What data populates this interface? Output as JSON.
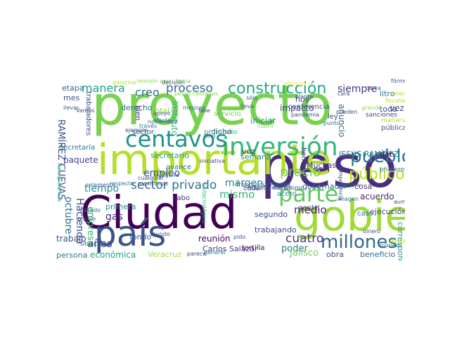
{
  "words": [
    {
      "text": "proyecto",
      "color": "#7ad151"
    },
    {
      "text": "peso",
      "color": "#472d7b"
    },
    {
      "text": "Ciudad",
      "color": "#440154"
    },
    {
      "text": "gobierno",
      "color": "#a0da39"
    },
    {
      "text": "país",
      "color": "#3b528b"
    },
    {
      "text": "importante",
      "color": "#b5de2b"
    },
    {
      "text": "parte",
      "color": "#5ec962"
    },
    {
      "text": "inversión",
      "color": "#35b779"
    },
    {
      "text": "centavos",
      "color": "#21918c"
    },
    {
      "text": "pueblo",
      "color": "#2a788e"
    },
    {
      "text": "construcción",
      "color": "#22a884"
    },
    {
      "text": "millones",
      "color": "#31688e"
    },
    {
      "text": "sector privado",
      "color": "#2c728e"
    },
    {
      "text": "público",
      "color": "#bddf26"
    },
    {
      "text": "precio",
      "color": "#7ad151"
    },
    {
      "text": "años",
      "color": "#3e4989"
    },
    {
      "text": "proceso",
      "color": "#31688e"
    },
    {
      "text": "manera",
      "color": "#1fa187"
    },
    {
      "text": "cuatro",
      "color": "#453781"
    },
    {
      "text": "siempre",
      "color": "#443983"
    },
    {
      "text": "creo",
      "color": "#2c728e"
    },
    {
      "text": "margen",
      "color": "#26828e"
    },
    {
      "text": "mismo",
      "color": "#35b779"
    },
    {
      "text": "poder",
      "color": "#2a788e"
    },
    {
      "text": "empleo",
      "color": "#3b528b"
    },
    {
      "text": "tiempo",
      "color": "#21918c"
    },
    {
      "text": "medio",
      "color": "#481f70"
    },
    {
      "text": "económica",
      "color": "#1fa187"
    },
    {
      "text": "fondo",
      "color": "#365c8d"
    },
    {
      "text": "Carlos Salazar",
      "color": "#404387"
    },
    {
      "text": "octubre",
      "color": "#2c728e"
    },
    {
      "text": "Hacienda",
      "color": "#3e4989"
    },
    {
      "text": "empresa",
      "color": "#35b779"
    },
    {
      "text": "RAMÍREZ CUEVAS",
      "color": "#3b528b"
    },
    {
      "text": "JESÚS RAMÍREZ",
      "color": "#2a788e"
    },
    {
      "text": "secretario",
      "color": "#1f9e89"
    },
    {
      "text": "paquete",
      "color": "#414487"
    },
    {
      "text": "primera",
      "color": "#21918c"
    },
    {
      "text": "gas",
      "color": "#482878"
    },
    {
      "text": "Veracruz",
      "color": "#a0da39"
    },
    {
      "text": "reunión",
      "color": "#440154"
    },
    {
      "text": "trabajando",
      "color": "#3e4989"
    },
    {
      "text": "acuerdo",
      "color": "#482878"
    },
    {
      "text": "impacto",
      "color": "#453781"
    },
    {
      "text": "anuncio",
      "color": "#31688e"
    },
    {
      "text": "litro",
      "color": "#2c728e"
    },
    {
      "text": "vez",
      "color": "#3b528b"
    },
    {
      "text": "hoy",
      "color": "#3e4989"
    },
    {
      "text": "iniciar",
      "color": "#21918c"
    },
    {
      "text": "semana",
      "color": "#26828e"
    },
    {
      "text": "voz",
      "color": "#404387"
    },
    {
      "text": "cada",
      "color": "#46327e"
    },
    {
      "text": "segundo",
      "color": "#3e4989"
    },
    {
      "text": "tortilla",
      "color": "#46085c"
    },
    {
      "text": "Jalisco",
      "color": "#6ece58"
    },
    {
      "text": "obra",
      "color": "#3b528b"
    },
    {
      "text": "beneficio",
      "color": "#2e6e8e"
    },
    {
      "text": "ejecución",
      "color": "#414487"
    },
    {
      "text": "corresponde",
      "color": "#21918c"
    },
    {
      "text": "trabajo",
      "color": "#3b528b"
    },
    {
      "text": "persona",
      "color": "#2a788e"
    },
    {
      "text": "etapa",
      "color": "#31688e"
    },
    {
      "text": "mes",
      "color": "#38588c"
    },
    {
      "text": "derecho",
      "color": "#2c728e"
    },
    {
      "text": "total",
      "color": "#8fd744"
    },
    {
      "text": "bien",
      "color": "#482878"
    },
    {
      "text": "instituto",
      "color": "#35b779"
    },
    {
      "text": "dicho",
      "color": "#3e4989"
    },
    {
      "text": "Secretaría",
      "color": "#2a788e"
    },
    {
      "text": "trabajadores",
      "color": "#3b528b"
    },
    {
      "text": "avance",
      "color": "#2c728e"
    },
    {
      "text": "promedio",
      "color": "#35b779"
    },
    {
      "text": "gobernador",
      "color": "#31688e"
    },
    {
      "text": "homicidio",
      "color": "#404387"
    },
    {
      "text": "Muchas",
      "color": "#453781"
    },
    {
      "text": "cosa",
      "color": "#46327e"
    },
    {
      "text": "dar",
      "color": "#440154"
    },
    {
      "text": "toda",
      "color": "#414487"
    },
    {
      "text": "pública",
      "color": "#3b528b"
    },
    {
      "text": "mañana",
      "color": "#bddf26"
    },
    {
      "text": "gente",
      "color": "#3e4989"
    },
    {
      "text": "acero",
      "color": "#21918c"
    },
    {
      "text": "cabo",
      "color": "#46327e"
    },
    {
      "text": "servicio",
      "color": "#6ece58"
    },
    {
      "text": "sector",
      "color": "#3b528b"
    },
    {
      "text": "caso",
      "color": "#2c728e"
    },
    {
      "text": "ley",
      "color": "#3e4989"
    },
    {
      "text": "sanciones",
      "color": "#414487"
    },
    {
      "text": "primero",
      "color": "#2a788e"
    },
    {
      "text": "conferencia",
      "color": "#3b528b"
    },
    {
      "text": "lleva",
      "color": "#31688e"
    },
    {
      "text": "planta",
      "color": "#3e4989"
    },
    {
      "text": "fase",
      "color": "#453781"
    },
    {
      "text": "franquicia Pemex",
      "color": "#2c728e"
    },
    {
      "text": "eficacia",
      "color": "#fde725"
    },
    {
      "text": "situación",
      "color": "#3b528b"
    },
    {
      "text": "pesos centavos",
      "color": "#7ad151"
    },
    {
      "text": "fiscalía",
      "color": "#b5de2b"
    },
    {
      "text": "fórmula",
      "color": "#3b528b"
    },
    {
      "text": "general",
      "color": "#2a788e"
    },
    {
      "text": "parece",
      "color": "#404387"
    },
    {
      "text": "pandemia",
      "color": "#3e4989"
    },
    {
      "text": "grande",
      "color": "#8fd744"
    },
    {
      "text": "Vamos",
      "color": "#3b528b"
    },
    {
      "text": "ejemplo",
      "color": "#3e4989"
    },
    {
      "text": "número",
      "color": "#2c728e"
    },
    {
      "text": "dinero",
      "color": "#3b528b"
    },
    {
      "text": "cambio",
      "color": "#31688e"
    },
    {
      "text": "competencia",
      "color": "#3e4989"
    },
    {
      "text": "imagen",
      "color": "#31688e"
    },
    {
      "text": "aumento",
      "color": "#3b528b"
    },
    {
      "text": "transparencia",
      "color": "#35b779"
    },
    {
      "text": "indígena",
      "color": "#2c728e"
    },
    {
      "text": "mexicanos",
      "color": "#3e4989"
    },
    {
      "text": "solamente",
      "color": "#3b528b"
    },
    {
      "text": "respecto",
      "color": "#2a788e"
    },
    {
      "text": "pasado",
      "color": "#31688e"
    },
    {
      "text": "incluso",
      "color": "#3e4989"
    },
    {
      "text": "mundo",
      "color": "#3b528b"
    },
    {
      "text": "iniciativa",
      "color": "#414487"
    },
    {
      "text": "caseta",
      "color": "#3e4989"
    },
    {
      "text": "punto",
      "color": "#31688e"
    },
    {
      "text": "apoyo",
      "color": "#3b528b"
    },
    {
      "text": "efecto",
      "color": "#2c728e"
    },
    {
      "text": "cara",
      "color": "#3b528b"
    },
    {
      "text": "pueden",
      "color": "#3e4989"
    },
    {
      "text": "través",
      "color": "#2a788e"
    },
    {
      "text": "noviembre",
      "color": "#31688e"
    },
    {
      "text": "cualquier",
      "color": "#3e4989"
    },
    {
      "text": "menos",
      "color": "#3b528b"
    },
    {
      "text": "mecanismo",
      "color": "#3e4989"
    },
    {
      "text": "biotecnológico",
      "color": "#35b779"
    },
    {
      "text": "pido",
      "color": "#3b528b"
    },
    {
      "text": "cubrir",
      "color": "#7ad151"
    },
    {
      "text": "sino",
      "color": "#3e4989"
    },
    {
      "text": "llevar",
      "color": "#31688e"
    },
    {
      "text": "mejores",
      "color": "#2a788e"
    },
    {
      "text": "reunión ayer",
      "color": "#8fd744"
    },
    {
      "text": "energía",
      "color": "#b5de2b"
    },
    {
      "text": "gasolina",
      "color": "#bddf26"
    },
    {
      "text": "tema",
      "color": "#7ad151"
    },
    {
      "text": "sólo",
      "color": "#3b528b"
    },
    {
      "text": "decisión",
      "color": "#3e4989"
    },
    {
      "text": "cerca",
      "color": "#31688e"
    },
    {
      "text": "rendimiento",
      "color": "#b5de2b"
    }
  ]
}
